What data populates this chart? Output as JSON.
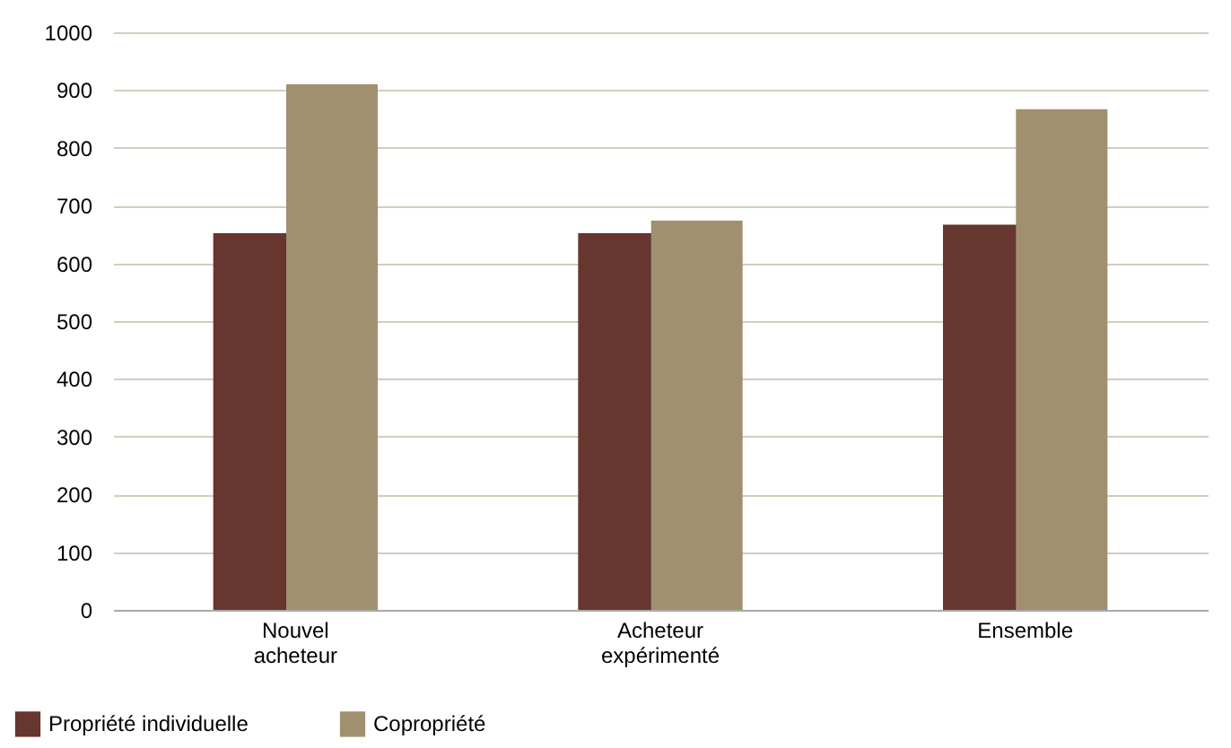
{
  "chart_data": {
    "type": "bar",
    "categories": [
      "Nouvel acheteur",
      "Acheteur expérimenté",
      "Ensemble"
    ],
    "series": [
      {
        "name": "Propriété individuelle",
        "color": "#66362f",
        "values": [
          652,
          652,
          667
        ]
      },
      {
        "name": "Copropriété",
        "color": "#a09070",
        "values": [
          910,
          674,
          867
        ]
      }
    ],
    "ylim": [
      0,
      1000
    ],
    "yticks": [
      0,
      100,
      200,
      300,
      400,
      500,
      600,
      700,
      800,
      900,
      1000
    ],
    "grid": "y",
    "legend": "bottom left"
  }
}
